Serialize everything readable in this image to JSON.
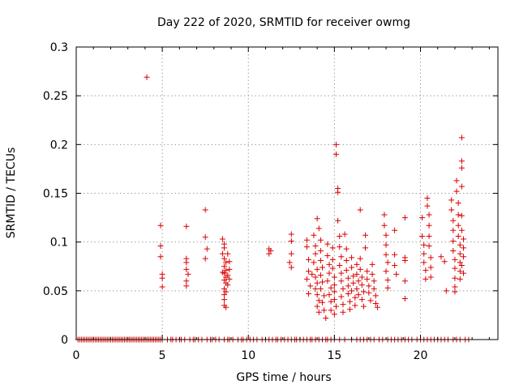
{
  "chart_data": {
    "type": "scatter",
    "title": "Day 222 of 2020, SRMTID for receiver owmg",
    "xlabel": "GPS time / hours",
    "ylabel": "SRMTID / TECUs",
    "xlim": [
      0,
      24.5
    ],
    "ylim": [
      0,
      0.3
    ],
    "x_ticks": [
      0,
      5,
      10,
      15,
      20
    ],
    "x_tick_labels": [
      "0",
      "5",
      "10",
      "15",
      "20"
    ],
    "y_ticks": [
      0,
      0.05,
      0.1,
      0.15,
      0.2,
      0.25,
      0.3
    ],
    "y_tick_labels": [
      "0",
      "0.05",
      "0.1",
      "0.15",
      "0.2",
      "0.25",
      "0.3"
    ],
    "grid": true,
    "marker": "+",
    "series": [
      {
        "name": "SRMTID",
        "color": "#dd0000",
        "points": [
          [
            4.1,
            0.269
          ],
          [
            4.9,
            0.117
          ],
          [
            4.9,
            0.096
          ],
          [
            4.9,
            0.085
          ],
          [
            5.0,
            0.067
          ],
          [
            5.0,
            0.063
          ],
          [
            5.0,
            0.054
          ],
          [
            6.4,
            0.116
          ],
          [
            6.4,
            0.083
          ],
          [
            6.4,
            0.079
          ],
          [
            6.4,
            0.072
          ],
          [
            6.5,
            0.067
          ],
          [
            6.4,
            0.06
          ],
          [
            6.4,
            0.055
          ],
          [
            7.5,
            0.133
          ],
          [
            7.5,
            0.105
          ],
          [
            7.6,
            0.093
          ],
          [
            7.5,
            0.083
          ],
          [
            8.5,
            0.103
          ],
          [
            8.6,
            0.098
          ],
          [
            8.6,
            0.094
          ],
          [
            8.5,
            0.088
          ],
          [
            8.6,
            0.083
          ],
          [
            8.7,
            0.079
          ],
          [
            8.6,
            0.075
          ],
          [
            8.7,
            0.071
          ],
          [
            8.6,
            0.068
          ],
          [
            8.8,
            0.066
          ],
          [
            8.7,
            0.064
          ],
          [
            8.6,
            0.061
          ],
          [
            8.7,
            0.058
          ],
          [
            8.8,
            0.056
          ],
          [
            8.6,
            0.052
          ],
          [
            8.7,
            0.049
          ],
          [
            8.6,
            0.046
          ],
          [
            8.8,
            0.088
          ],
          [
            8.9,
            0.08
          ],
          [
            8.9,
            0.072
          ],
          [
            8.9,
            0.062
          ],
          [
            8.5,
            0.069
          ],
          [
            8.6,
            0.041
          ],
          [
            8.6,
            0.035
          ],
          [
            8.7,
            0.033
          ],
          [
            11.2,
            0.093
          ],
          [
            11.2,
            0.088
          ],
          [
            11.3,
            0.091
          ],
          [
            12.5,
            0.108
          ],
          [
            12.5,
            0.101
          ],
          [
            12.5,
            0.088
          ],
          [
            12.4,
            0.079
          ],
          [
            12.5,
            0.074
          ],
          [
            13.4,
            0.102
          ],
          [
            13.4,
            0.095
          ],
          [
            13.5,
            0.082
          ],
          [
            13.5,
            0.07
          ],
          [
            13.4,
            0.062
          ],
          [
            13.6,
            0.055
          ],
          [
            13.5,
            0.047
          ],
          [
            13.7,
            0.067
          ],
          [
            13.8,
            0.107
          ],
          [
            13.9,
            0.096
          ],
          [
            13.9,
            0.088
          ],
          [
            13.8,
            0.079
          ],
          [
            14.0,
            0.072
          ],
          [
            13.9,
            0.064
          ],
          [
            14.0,
            0.058
          ],
          [
            13.9,
            0.052
          ],
          [
            14.0,
            0.046
          ],
          [
            14.1,
            0.04
          ],
          [
            14.0,
            0.034
          ],
          [
            14.1,
            0.028
          ],
          [
            14.0,
            0.124
          ],
          [
            14.1,
            0.114
          ],
          [
            14.2,
            0.102
          ],
          [
            14.2,
            0.091
          ],
          [
            14.2,
            0.081
          ],
          [
            14.3,
            0.074
          ],
          [
            14.2,
            0.066
          ],
          [
            14.3,
            0.059
          ],
          [
            14.2,
            0.052
          ],
          [
            14.4,
            0.045
          ],
          [
            14.3,
            0.038
          ],
          [
            14.4,
            0.03
          ],
          [
            14.5,
            0.022
          ],
          [
            14.6,
            0.098
          ],
          [
            14.6,
            0.086
          ],
          [
            14.7,
            0.077
          ],
          [
            14.7,
            0.068
          ],
          [
            14.6,
            0.06
          ],
          [
            14.8,
            0.053
          ],
          [
            14.7,
            0.046
          ],
          [
            14.8,
            0.039
          ],
          [
            14.8,
            0.03
          ],
          [
            14.9,
            0.094
          ],
          [
            14.9,
            0.082
          ],
          [
            14.9,
            0.073
          ],
          [
            15.0,
            0.064
          ],
          [
            15.0,
            0.056
          ],
          [
            15.0,
            0.049
          ],
          [
            15.0,
            0.041
          ],
          [
            15.1,
            0.034
          ],
          [
            15.0,
            0.026
          ],
          [
            15.1,
            0.2
          ],
          [
            15.1,
            0.19
          ],
          [
            15.2,
            0.155
          ],
          [
            15.2,
            0.151
          ],
          [
            15.2,
            0.122
          ],
          [
            15.3,
            0.106
          ],
          [
            15.3,
            0.095
          ],
          [
            15.4,
            0.085
          ],
          [
            15.3,
            0.076
          ],
          [
            15.4,
            0.068
          ],
          [
            15.4,
            0.06
          ],
          [
            15.5,
            0.052
          ],
          [
            15.4,
            0.044
          ],
          [
            15.5,
            0.036
          ],
          [
            15.5,
            0.028
          ],
          [
            15.6,
            0.108
          ],
          [
            15.7,
            0.093
          ],
          [
            15.7,
            0.081
          ],
          [
            15.7,
            0.071
          ],
          [
            15.8,
            0.063
          ],
          [
            15.8,
            0.055
          ],
          [
            15.8,
            0.047
          ],
          [
            15.9,
            0.039
          ],
          [
            15.9,
            0.031
          ],
          [
            16.0,
            0.084
          ],
          [
            16.0,
            0.074
          ],
          [
            16.1,
            0.065
          ],
          [
            16.1,
            0.058
          ],
          [
            16.0,
            0.05
          ],
          [
            16.2,
            0.043
          ],
          [
            16.2,
            0.035
          ],
          [
            16.3,
            0.077
          ],
          [
            16.3,
            0.067
          ],
          [
            16.4,
            0.06
          ],
          [
            16.3,
            0.052
          ],
          [
            16.4,
            0.046
          ],
          [
            16.5,
            0.133
          ],
          [
            16.5,
            0.083
          ],
          [
            16.5,
            0.072
          ],
          [
            16.6,
            0.064
          ],
          [
            16.6,
            0.056
          ],
          [
            16.7,
            0.049
          ],
          [
            16.6,
            0.041
          ],
          [
            16.7,
            0.034
          ],
          [
            16.8,
            0.107
          ],
          [
            16.8,
            0.094
          ],
          [
            16.9,
            0.07
          ],
          [
            16.9,
            0.062
          ],
          [
            17.0,
            0.055
          ],
          [
            17.0,
            0.048
          ],
          [
            17.1,
            0.04
          ],
          [
            17.2,
            0.077
          ],
          [
            17.2,
            0.067
          ],
          [
            17.3,
            0.06
          ],
          [
            17.3,
            0.052
          ],
          [
            17.4,
            0.045
          ],
          [
            17.4,
            0.037
          ],
          [
            17.5,
            0.033
          ],
          [
            17.9,
            0.128
          ],
          [
            17.9,
            0.117
          ],
          [
            18.0,
            0.107
          ],
          [
            18.0,
            0.097
          ],
          [
            18.0,
            0.087
          ],
          [
            18.1,
            0.079
          ],
          [
            18.0,
            0.07
          ],
          [
            18.1,
            0.061
          ],
          [
            18.1,
            0.053
          ],
          [
            18.5,
            0.112
          ],
          [
            18.5,
            0.087
          ],
          [
            18.5,
            0.076
          ],
          [
            18.6,
            0.067
          ],
          [
            19.1,
            0.125
          ],
          [
            19.1,
            0.084
          ],
          [
            19.1,
            0.081
          ],
          [
            19.1,
            0.06
          ],
          [
            19.1,
            0.042
          ],
          [
            20.1,
            0.125
          ],
          [
            20.1,
            0.106
          ],
          [
            20.2,
            0.097
          ],
          [
            20.2,
            0.088
          ],
          [
            20.2,
            0.079
          ],
          [
            20.3,
            0.071
          ],
          [
            20.3,
            0.062
          ],
          [
            20.4,
            0.145
          ],
          [
            20.4,
            0.137
          ],
          [
            20.5,
            0.128
          ],
          [
            20.5,
            0.117
          ],
          [
            20.5,
            0.106
          ],
          [
            20.5,
            0.096
          ],
          [
            20.6,
            0.084
          ],
          [
            20.6,
            0.074
          ],
          [
            20.6,
            0.064
          ],
          [
            21.2,
            0.085
          ],
          [
            21.4,
            0.08
          ],
          [
            21.5,
            0.05
          ],
          [
            21.8,
            0.143
          ],
          [
            21.8,
            0.133
          ],
          [
            21.9,
            0.122
          ],
          [
            21.9,
            0.112
          ],
          [
            21.9,
            0.101
          ],
          [
            21.9,
            0.091
          ],
          [
            22.0,
            0.082
          ],
          [
            22.0,
            0.073
          ],
          [
            22.0,
            0.063
          ],
          [
            22.0,
            0.054
          ],
          [
            22.0,
            0.049
          ],
          [
            22.1,
            0.163
          ],
          [
            22.1,
            0.152
          ],
          [
            22.2,
            0.14
          ],
          [
            22.2,
            0.128
          ],
          [
            22.2,
            0.117
          ],
          [
            22.2,
            0.106
          ],
          [
            22.3,
            0.097
          ],
          [
            22.3,
            0.088
          ],
          [
            22.3,
            0.079
          ],
          [
            22.3,
            0.07
          ],
          [
            22.3,
            0.062
          ],
          [
            22.4,
            0.207
          ],
          [
            22.4,
            0.183
          ],
          [
            22.4,
            0.176
          ],
          [
            22.4,
            0.157
          ],
          [
            22.4,
            0.127
          ],
          [
            22.4,
            0.112
          ],
          [
            22.5,
            0.103
          ],
          [
            22.5,
            0.094
          ],
          [
            22.5,
            0.085
          ],
          [
            22.4,
            0.076
          ],
          [
            22.5,
            0.068
          ]
        ],
        "zero_points_x": [
          0.1,
          0.2,
          0.3,
          0.4,
          0.5,
          0.6,
          0.7,
          0.8,
          0.9,
          1.0,
          1.1,
          1.2,
          1.3,
          1.4,
          1.5,
          1.6,
          1.7,
          1.8,
          1.9,
          2.0,
          2.1,
          2.2,
          2.3,
          2.4,
          2.5,
          2.6,
          2.7,
          2.8,
          2.9,
          3.0,
          3.1,
          3.2,
          3.3,
          3.4,
          3.5,
          3.6,
          3.7,
          3.8,
          3.9,
          4.0,
          4.1,
          4.2,
          4.3,
          4.4,
          4.5,
          4.6,
          4.7,
          4.8,
          4.9,
          5.0,
          5.3,
          5.5,
          5.6,
          5.8,
          6.0,
          6.1,
          6.3,
          6.6,
          6.8,
          6.9,
          7.1,
          7.3,
          7.6,
          7.8,
          7.9,
          8.1,
          8.3,
          8.6,
          8.8,
          8.9,
          9.1,
          9.4,
          9.6,
          9.7,
          9.9,
          10.1,
          10.3,
          10.5,
          10.8,
          11.0,
          11.2,
          11.4,
          11.6,
          11.7,
          11.9,
          12.1,
          12.3,
          12.5,
          12.7,
          12.8,
          13.0,
          13.2,
          13.4,
          13.6,
          13.7,
          13.9,
          14.1,
          14.3,
          14.5,
          14.6,
          14.8,
          15.0,
          15.3,
          15.6,
          16.0,
          16.3,
          16.5,
          16.7,
          16.9,
          17.1,
          17.3,
          17.6,
          17.8,
          18.1,
          18.3,
          18.5,
          18.7,
          18.9,
          19.1,
          19.3,
          19.5,
          19.8,
          20.0,
          20.2,
          20.4,
          20.6,
          20.8,
          21.0,
          21.2,
          21.4,
          21.6,
          21.9,
          22.1,
          22.3,
          22.6,
          22.8
        ]
      }
    ]
  }
}
